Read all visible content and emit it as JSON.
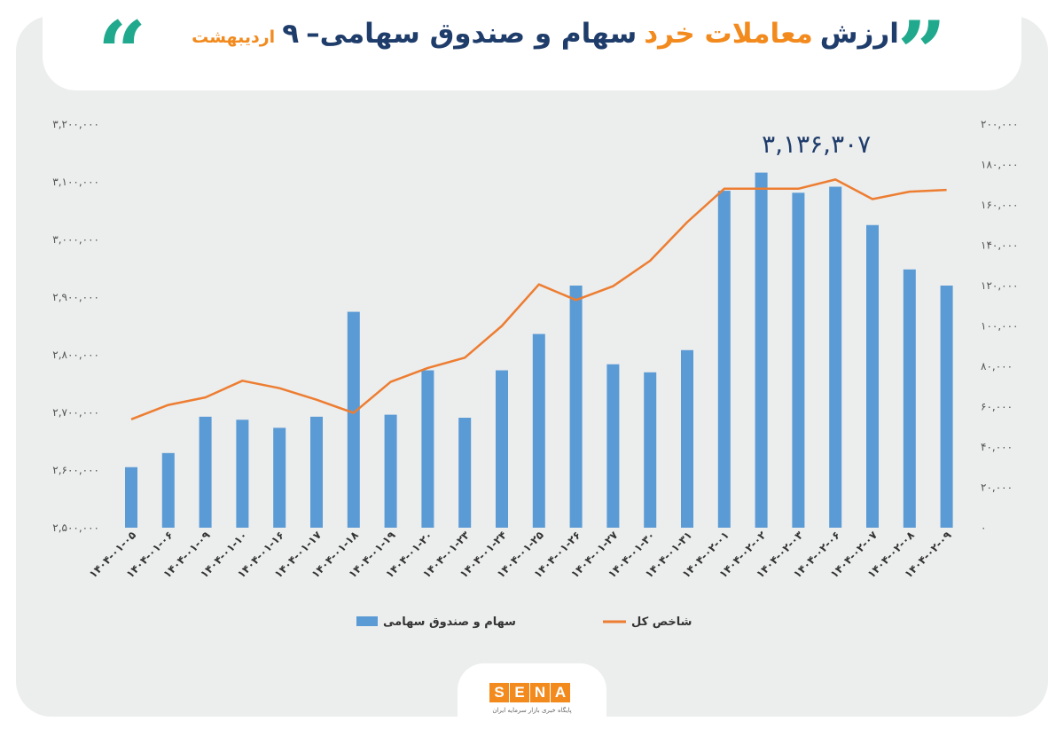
{
  "header": {
    "title_part1": "ارزش",
    "title_part2": "معاملات خرد",
    "title_part3": "سهام و صندوق سهامی–",
    "title_number": "۹",
    "title_date": "اردیبهشت",
    "accent_color": "#f28a1e",
    "brand_color": "#1f3d6b",
    "quote_color": "#21a98e"
  },
  "footer": {
    "logo_letters": [
      "S",
      "E",
      "N",
      "A"
    ],
    "logo_subtitle": "پایگاه خبری بازار سرمایه ایران"
  },
  "chart_data": {
    "type": "bar",
    "categories": [
      "۱۴۰۴-۰۱-۰۵",
      "۱۴۰۴-۰۱-۰۶",
      "۱۴۰۴-۰۱-۰۹",
      "۱۴۰۴-۰۱-۱۰",
      "۱۴۰۴-۰۱-۱۶",
      "۱۴۰۴-۰۱-۱۷",
      "۱۴۰۴-۰۱-۱۸",
      "۱۴۰۴-۰۱-۱۹",
      "۱۴۰۴-۰۱-۲۰",
      "۱۴۰۴-۰۱-۲۳",
      "۱۴۰۴-۰۱-۲۴",
      "۱۴۰۴-۰۱-۲۵",
      "۱۴۰۴-۰۱-۲۶",
      "۱۴۰۴-۰۱-۲۷",
      "۱۴۰۴-۰۱-۳۰",
      "۱۴۰۴-۰۱-۳۱",
      "۱۴۰۴-۰۲-۰۱",
      "۱۴۰۴-۰۲-۰۲",
      "۱۴۰۴-۰۲-۰۳",
      "۱۴۰۴-۰۲-۰۶",
      "۱۴۰۴-۰۲-۰۷",
      "۱۴۰۴-۰۲-۰۸",
      "۱۴۰۴-۰۲-۰۹"
    ],
    "series": [
      {
        "name": "سهام و صندوق سهامی",
        "kind": "bar",
        "axis": "right",
        "color": "#5b9bd5",
        "values": [
          30000,
          37000,
          55000,
          53500,
          49500,
          55000,
          107000,
          56000,
          78000,
          54500,
          78000,
          96000,
          120000,
          81000,
          77000,
          88000,
          167000,
          176000,
          166000,
          169000,
          150000,
          128000,
          120000
        ]
      },
      {
        "name": "شاخص کل",
        "kind": "line",
        "axis": "left",
        "color": "#ed7d31",
        "values": [
          2688000,
          2713000,
          2726000,
          2755000,
          2742000,
          2722000,
          2699000,
          2753000,
          2777000,
          2795000,
          2850000,
          2922000,
          2895000,
          2919000,
          2963000,
          3030000,
          3088000,
          3088000,
          3088000,
          3104000,
          3070000,
          3083000,
          3086000
        ]
      }
    ],
    "y_left": {
      "range": [
        2500000,
        3200000
      ],
      "ticks": [
        2500000,
        2600000,
        2700000,
        2800000,
        2900000,
        3000000,
        3100000,
        3200000
      ],
      "tick_labels": [
        "۲,۵۰۰,۰۰۰",
        "۲,۶۰۰,۰۰۰",
        "۲,۷۰۰,۰۰۰",
        "۲,۸۰۰,۰۰۰",
        "۲,۹۰۰,۰۰۰",
        "۳,۰۰۰,۰۰۰",
        "۳,۱۰۰,۰۰۰",
        "۳,۲۰۰,۰۰۰"
      ]
    },
    "y_right": {
      "range": [
        0,
        200000
      ],
      "ticks": [
        0,
        20000,
        40000,
        60000,
        80000,
        100000,
        120000,
        140000,
        160000,
        180000,
        200000
      ],
      "tick_labels": [
        "۰",
        "۲۰,۰۰۰",
        "۴۰,۰۰۰",
        "۶۰,۰۰۰",
        "۸۰,۰۰۰",
        "۱۰۰,۰۰۰",
        "۱۲۰,۰۰۰",
        "۱۴۰,۰۰۰",
        "۱۶۰,۰۰۰",
        "۱۸۰,۰۰۰",
        "۲۰۰,۰۰۰"
      ]
    },
    "annotation": {
      "text": "۳,۱۳۶,۳۰۷",
      "category_index": 19
    },
    "legend": [
      "سهام و صندوق سهامی",
      "شاخص کل"
    ],
    "legend_position": "bottom",
    "grid": false
  }
}
